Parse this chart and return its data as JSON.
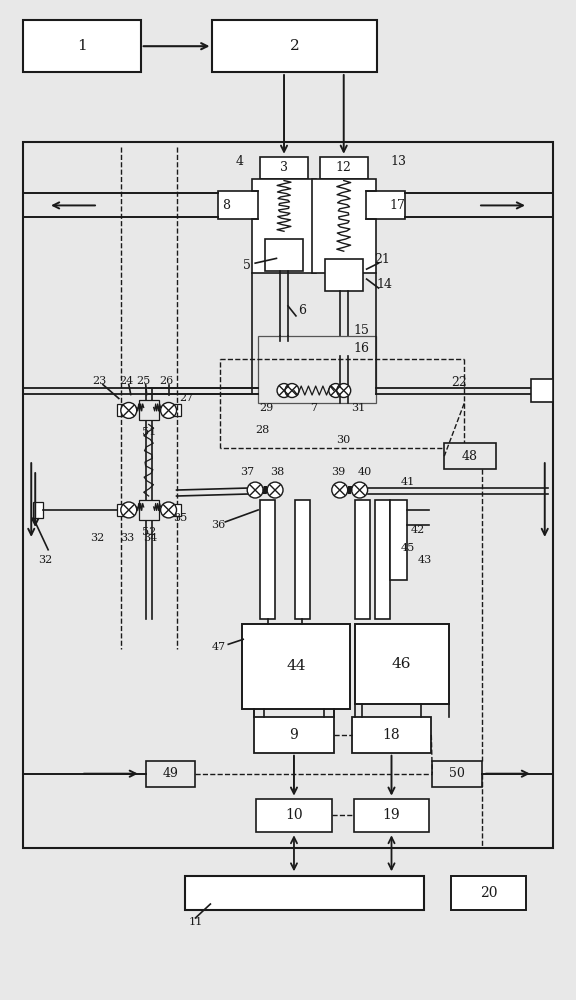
{
  "bg_color": "#e8e8e8",
  "line_color": "#1a1a1a",
  "fig_width": 5.76,
  "fig_height": 10.0,
  "dpi": 100
}
